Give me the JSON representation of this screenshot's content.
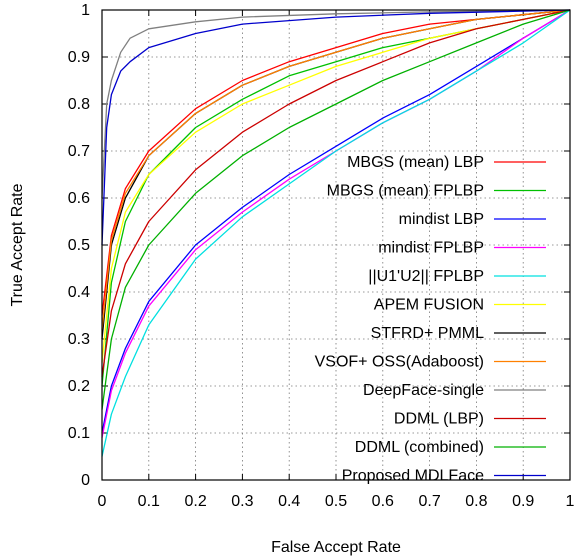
{
  "chart_data": {
    "type": "line",
    "title": "",
    "xlabel": "False Accept Rate",
    "ylabel": "True Accept Rate",
    "xlim": [
      0,
      1
    ],
    "ylim": [
      0,
      1
    ],
    "xticks": [
      "0",
      "0.1",
      "0.2",
      "0.3",
      "0.4",
      "0.5",
      "0.6",
      "0.7",
      "0.8",
      "0.9",
      "1"
    ],
    "yticks": [
      "0",
      "0.1",
      "0.2",
      "0.3",
      "0.4",
      "0.5",
      "0.6",
      "0.7",
      "0.8",
      "0.9",
      "1"
    ],
    "grid": true,
    "legend_position": "bottom-right",
    "series": [
      {
        "name": "MBGS (mean) LBP",
        "color": "#ff0000",
        "points": [
          [
            0,
            0.35
          ],
          [
            0.02,
            0.52
          ],
          [
            0.05,
            0.62
          ],
          [
            0.1,
            0.7
          ],
          [
            0.2,
            0.79
          ],
          [
            0.3,
            0.85
          ],
          [
            0.4,
            0.89
          ],
          [
            0.5,
            0.92
          ],
          [
            0.6,
            0.95
          ],
          [
            0.7,
            0.97
          ],
          [
            0.8,
            0.98
          ],
          [
            0.9,
            0.99
          ],
          [
            1,
            1
          ]
        ]
      },
      {
        "name": "MBGS (mean) FPLBP",
        "color": "#00c000",
        "points": [
          [
            0,
            0.2
          ],
          [
            0.02,
            0.42
          ],
          [
            0.05,
            0.55
          ],
          [
            0.1,
            0.65
          ],
          [
            0.2,
            0.75
          ],
          [
            0.3,
            0.81
          ],
          [
            0.4,
            0.86
          ],
          [
            0.5,
            0.89
          ],
          [
            0.6,
            0.92
          ],
          [
            0.7,
            0.94
          ],
          [
            0.8,
            0.96
          ],
          [
            0.9,
            0.98
          ],
          [
            1,
            1
          ]
        ]
      },
      {
        "name": "mindist LBP",
        "color": "#0000ff",
        "points": [
          [
            0,
            0.1
          ],
          [
            0.02,
            0.2
          ],
          [
            0.05,
            0.28
          ],
          [
            0.1,
            0.38
          ],
          [
            0.2,
            0.5
          ],
          [
            0.3,
            0.58
          ],
          [
            0.4,
            0.65
          ],
          [
            0.5,
            0.71
          ],
          [
            0.6,
            0.77
          ],
          [
            0.7,
            0.82
          ],
          [
            0.8,
            0.88
          ],
          [
            0.9,
            0.94
          ],
          [
            1,
            1
          ]
        ]
      },
      {
        "name": "mindist FPLBP",
        "color": "#ff00ff",
        "points": [
          [
            0,
            0.09
          ],
          [
            0.02,
            0.19
          ],
          [
            0.05,
            0.27
          ],
          [
            0.1,
            0.37
          ],
          [
            0.2,
            0.49
          ],
          [
            0.3,
            0.57
          ],
          [
            0.4,
            0.64
          ],
          [
            0.5,
            0.7
          ],
          [
            0.6,
            0.76
          ],
          [
            0.7,
            0.81
          ],
          [
            0.8,
            0.87
          ],
          [
            0.9,
            0.94
          ],
          [
            1,
            1
          ]
        ]
      },
      {
        "name": "||U1'U2|| FPLBP",
        "color": "#00e0e0",
        "points": [
          [
            0,
            0.05
          ],
          [
            0.02,
            0.14
          ],
          [
            0.05,
            0.22
          ],
          [
            0.1,
            0.33
          ],
          [
            0.2,
            0.47
          ],
          [
            0.3,
            0.56
          ],
          [
            0.4,
            0.63
          ],
          [
            0.5,
            0.7
          ],
          [
            0.6,
            0.76
          ],
          [
            0.7,
            0.81
          ],
          [
            0.8,
            0.87
          ],
          [
            0.9,
            0.93
          ],
          [
            1,
            1
          ]
        ]
      },
      {
        "name": "APEM FUSION",
        "color": "#ffff00",
        "points": [
          [
            0,
            0.25
          ],
          [
            0.02,
            0.45
          ],
          [
            0.05,
            0.57
          ],
          [
            0.1,
            0.65
          ],
          [
            0.2,
            0.74
          ],
          [
            0.3,
            0.8
          ],
          [
            0.4,
            0.84
          ],
          [
            0.5,
            0.88
          ],
          [
            0.6,
            0.91
          ],
          [
            0.7,
            0.94
          ],
          [
            0.8,
            0.96
          ],
          [
            0.9,
            0.98
          ],
          [
            1,
            1
          ]
        ]
      },
      {
        "name": "STFRD+ PMML",
        "color": "#000000",
        "points": [
          [
            0,
            0.3
          ],
          [
            0.02,
            0.5
          ],
          [
            0.05,
            0.6
          ],
          [
            0.1,
            0.69
          ],
          [
            0.2,
            0.78
          ],
          [
            0.3,
            0.84
          ],
          [
            0.4,
            0.88
          ],
          [
            0.5,
            0.91
          ],
          [
            0.6,
            0.94
          ],
          [
            0.7,
            0.96
          ],
          [
            0.8,
            0.98
          ],
          [
            0.9,
            0.99
          ],
          [
            1,
            1
          ]
        ]
      },
      {
        "name": "VSOF+ OSS(Adaboost)",
        "color": "#ff8000",
        "points": [
          [
            0,
            0.32
          ],
          [
            0.02,
            0.51
          ],
          [
            0.05,
            0.61
          ],
          [
            0.1,
            0.69
          ],
          [
            0.2,
            0.78
          ],
          [
            0.3,
            0.84
          ],
          [
            0.4,
            0.88
          ],
          [
            0.5,
            0.91
          ],
          [
            0.6,
            0.94
          ],
          [
            0.7,
            0.96
          ],
          [
            0.8,
            0.98
          ],
          [
            0.9,
            0.99
          ],
          [
            1,
            1
          ]
        ]
      },
      {
        "name": "DeepFace-single",
        "color": "#808080",
        "points": [
          [
            0,
            0.6
          ],
          [
            0.01,
            0.8
          ],
          [
            0.02,
            0.85
          ],
          [
            0.04,
            0.91
          ],
          [
            0.06,
            0.94
          ],
          [
            0.1,
            0.96
          ],
          [
            0.2,
            0.975
          ],
          [
            0.3,
            0.985
          ],
          [
            0.5,
            0.992
          ],
          [
            0.7,
            0.996
          ],
          [
            1,
            1
          ]
        ]
      },
      {
        "name": "DDML (LBP)",
        "color": "#cc0000",
        "points": [
          [
            0,
            0.22
          ],
          [
            0.02,
            0.36
          ],
          [
            0.05,
            0.46
          ],
          [
            0.1,
            0.55
          ],
          [
            0.2,
            0.66
          ],
          [
            0.3,
            0.74
          ],
          [
            0.4,
            0.8
          ],
          [
            0.5,
            0.85
          ],
          [
            0.6,
            0.89
          ],
          [
            0.7,
            0.93
          ],
          [
            0.8,
            0.96
          ],
          [
            0.9,
            0.98
          ],
          [
            1,
            1
          ]
        ]
      },
      {
        "name": "DDML (combined)",
        "color": "#00b000",
        "points": [
          [
            0,
            0.15
          ],
          [
            0.02,
            0.3
          ],
          [
            0.05,
            0.41
          ],
          [
            0.1,
            0.5
          ],
          [
            0.2,
            0.61
          ],
          [
            0.3,
            0.69
          ],
          [
            0.4,
            0.75
          ],
          [
            0.5,
            0.8
          ],
          [
            0.6,
            0.85
          ],
          [
            0.7,
            0.89
          ],
          [
            0.8,
            0.93
          ],
          [
            0.9,
            0.97
          ],
          [
            1,
            1
          ]
        ]
      },
      {
        "name": "Proposed MDLFace",
        "color": "#0000cc",
        "points": [
          [
            0,
            0.5
          ],
          [
            0.01,
            0.75
          ],
          [
            0.02,
            0.82
          ],
          [
            0.04,
            0.87
          ],
          [
            0.06,
            0.89
          ],
          [
            0.1,
            0.92
          ],
          [
            0.2,
            0.95
          ],
          [
            0.3,
            0.97
          ],
          [
            0.5,
            0.985
          ],
          [
            0.7,
            0.993
          ],
          [
            1,
            1
          ]
        ]
      }
    ]
  }
}
